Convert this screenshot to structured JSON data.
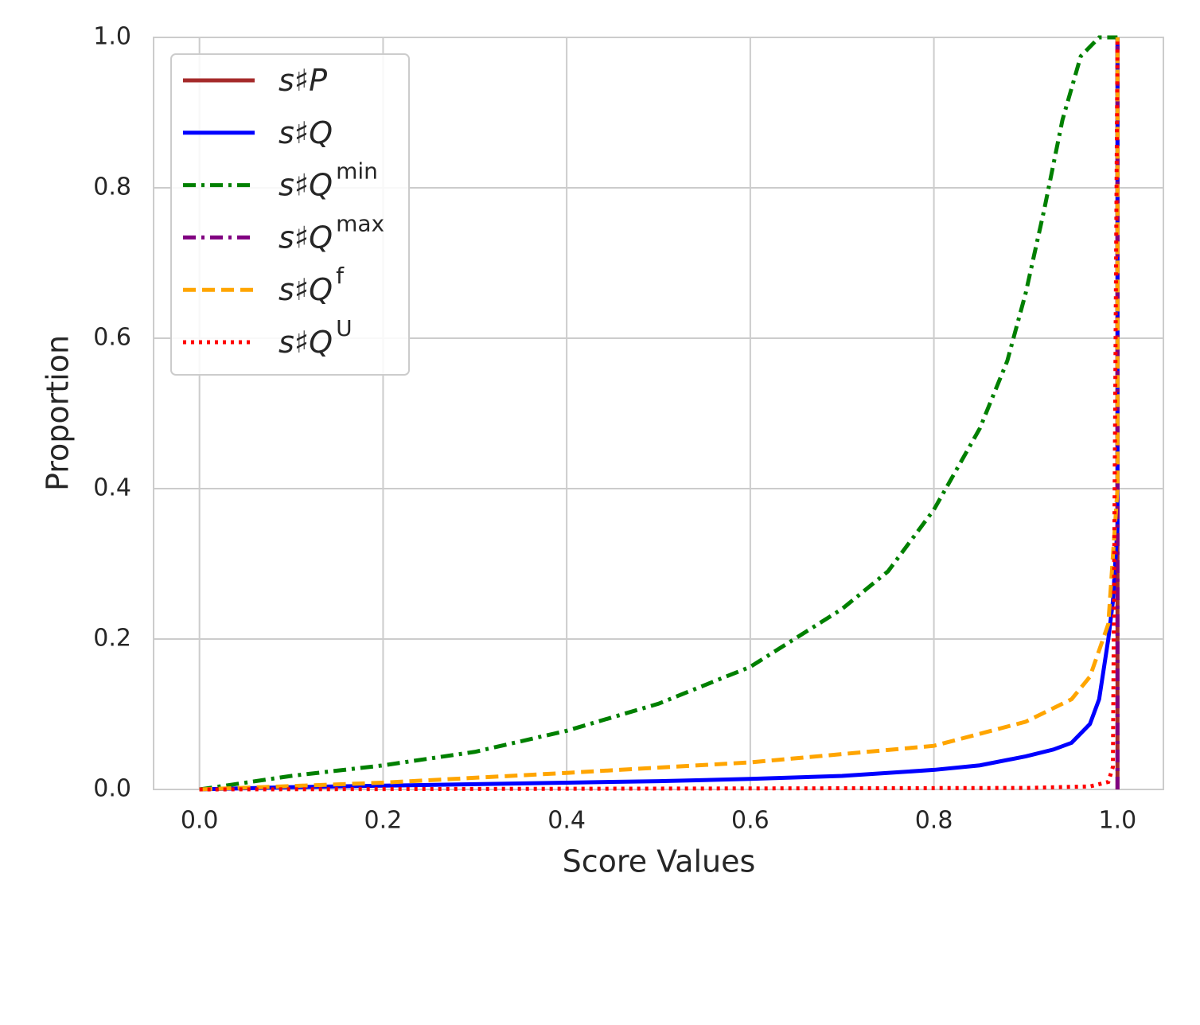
{
  "chart_data": {
    "type": "line",
    "xlabel": "Score Values",
    "ylabel": "Proportion",
    "xlim": [
      -0.05,
      1.05
    ],
    "ylim": [
      0,
      1
    ],
    "xticks": [
      {
        "value": 0,
        "label": "0.0"
      },
      {
        "value": 0.2,
        "label": "0.2"
      },
      {
        "value": 0.4,
        "label": "0.4"
      },
      {
        "value": 0.6,
        "label": "0.6"
      },
      {
        "value": 0.8,
        "label": "0.8"
      },
      {
        "value": 1,
        "label": "1.0"
      }
    ],
    "yticks": [
      {
        "value": 0,
        "label": "0.0"
      },
      {
        "value": 0.2,
        "label": "0.2"
      },
      {
        "value": 0.4,
        "label": "0.4"
      },
      {
        "value": 0.6,
        "label": "0.6"
      },
      {
        "value": 0.8,
        "label": "0.8"
      },
      {
        "value": 1,
        "label": "1.0"
      }
    ],
    "grid": true,
    "legend": "upper left",
    "series": [
      {
        "name": "s♯P",
        "color": "#a52a2a",
        "style": "solid",
        "x": [
          1,
          1
        ],
        "values": [
          0,
          1
        ]
      },
      {
        "name": "s♯Q",
        "color": "#0000ff",
        "style": "solid",
        "x": [
          0,
          0.1,
          0.2,
          0.3,
          0.4,
          0.5,
          0.6,
          0.7,
          0.8,
          0.85,
          0.9,
          0.93,
          0.95,
          0.97,
          0.98,
          0.99,
          0.995,
          1,
          1
        ],
        "values": [
          0,
          0.003,
          0.005,
          0.007,
          0.009,
          0.011,
          0.014,
          0.018,
          0.026,
          0.032,
          0.044,
          0.053,
          0.062,
          0.087,
          0.12,
          0.2,
          0.25,
          0.35,
          1
        ]
      },
      {
        "name": "s♯Q",
        "name_sup": "min",
        "color": "#008000",
        "style": "dashdot",
        "x": [
          0,
          0.1,
          0.2,
          0.3,
          0.4,
          0.5,
          0.6,
          0.7,
          0.75,
          0.8,
          0.85,
          0.88,
          0.9,
          0.92,
          0.94,
          0.96,
          0.98,
          1
        ],
        "values": [
          0,
          0.018,
          0.032,
          0.05,
          0.078,
          0.114,
          0.163,
          0.24,
          0.29,
          0.372,
          0.48,
          0.57,
          0.66,
          0.77,
          0.89,
          0.975,
          1,
          1
        ]
      },
      {
        "name": "s♯Q",
        "name_sup": "max",
        "color": "#800080",
        "style": "dashdot",
        "x": [
          1,
          1
        ],
        "values": [
          0,
          1
        ]
      },
      {
        "name": "s♯Q",
        "name_sup": "f",
        "color": "#ffa500",
        "style": "dashed",
        "x": [
          0,
          0.2,
          0.4,
          0.6,
          0.8,
          0.9,
          0.95,
          0.97,
          0.99,
          1,
          1
        ],
        "values": [
          0,
          0.009,
          0.022,
          0.036,
          0.058,
          0.09,
          0.12,
          0.15,
          0.22,
          0.4,
          1
        ]
      },
      {
        "name": "s♯Q",
        "name_sup": "U",
        "color": "#ff0000",
        "style": "dotted",
        "x": [
          0,
          0.9,
          0.97,
          0.99,
          0.995,
          1
        ],
        "values": [
          0,
          0.002,
          0.004,
          0.01,
          0.03,
          1
        ]
      }
    ]
  }
}
